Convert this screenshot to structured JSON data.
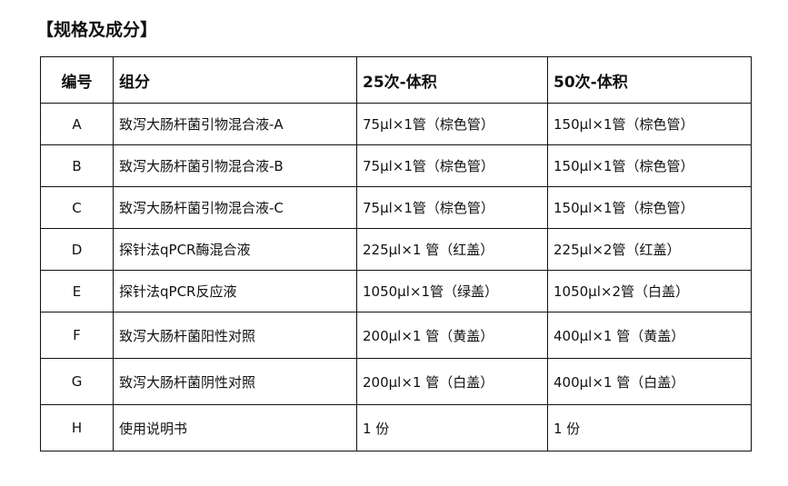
{
  "title": "【规格及成分】",
  "table": {
    "headers": [
      "编号",
      "组分",
      "25次-体积",
      "50次-体积"
    ],
    "rows": [
      [
        "A",
        "致泻大肠杆菌引物混合液-A",
        "75μl×1管（棕色管）",
        "150μl×1管（棕色管）"
      ],
      [
        "B",
        "致泻大肠杆菌引物混合液-B",
        "75μl×1管（棕色管）",
        "150μl×1管（棕色管）"
      ],
      [
        "C",
        "致泻大肠杆菌引物混合液-C",
        "75μl×1管（棕色管）",
        "150μl×1管（棕色管）"
      ],
      [
        "D",
        "探针法qPCR酶混合液",
        "225μl×1 管（红盖）",
        "225μl×2管（红盖）"
      ],
      [
        "E",
        "探针法qPCR反应液",
        "1050μl×1管（绿盖）",
        "1050μl×2管（白盖）"
      ],
      [
        "F",
        "致泻大肠杆菌阳性对照",
        "200μl×1 管（黄盖）",
        "400μl×1 管（黄盖）"
      ],
      [
        "G",
        "致泻大肠杆菌阴性对照",
        "200μl×1 管（白盖）",
        "400μl×1 管（白盖）"
      ],
      [
        "H",
        "使用说明书",
        "1 份",
        "1 份"
      ]
    ]
  }
}
